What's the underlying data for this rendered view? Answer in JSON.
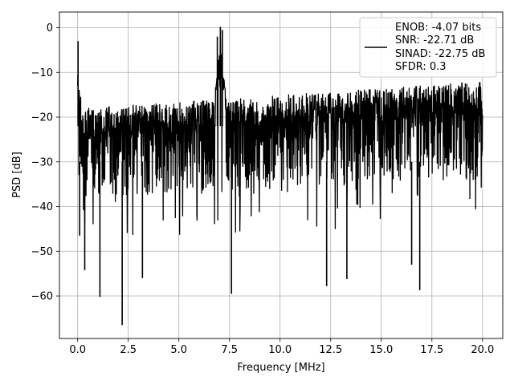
{
  "chart_data": {
    "type": "line",
    "xlabel": "Frequency [MHz]",
    "ylabel": "PSD [dB]",
    "xlim": [
      -0.9,
      21.0
    ],
    "ylim": [
      -69.5,
      3.5
    ],
    "xticks": [
      0.0,
      2.5,
      5.0,
      7.5,
      10.0,
      12.5,
      15.0,
      17.5,
      20.0
    ],
    "xtick_labels": [
      "0.0",
      "2.5",
      "5.0",
      "7.5",
      "10.0",
      "12.5",
      "15.0",
      "17.5",
      "20.0"
    ],
    "yticks": [
      0,
      -10,
      -20,
      -30,
      -40,
      -50,
      -60
    ],
    "ytick_labels": [
      "0",
      "−10",
      "−20",
      "−30",
      "−40",
      "−50",
      "−60"
    ],
    "grid": true,
    "legend_position": "top-right",
    "line_color": "#000000",
    "legend_lines": [
      "ENOB: -4.07 bits",
      "SNR: -22.71 dB",
      "SINAD: -22.75 dB",
      "SFDR: 0.3"
    ],
    "x_range": [
      0.0,
      20.0
    ],
    "noise_band": {
      "low_start": [
        0.05,
        -38
      ],
      "low_end": [
        20.0,
        -34
      ],
      "high_start": [
        0.05,
        -18
      ],
      "high_end": [
        20.0,
        -12
      ]
    },
    "peaks": [
      {
        "x": 0.02,
        "y": -3
      },
      {
        "x": 7.05,
        "y": 0.2
      },
      {
        "x": 6.9,
        "y": -2
      },
      {
        "x": 7.15,
        "y": -0.5
      }
    ],
    "dips": [
      {
        "x": 2.2,
        "y": -66.5
      },
      {
        "x": 1.1,
        "y": -60.2
      },
      {
        "x": 7.6,
        "y": -59.5
      },
      {
        "x": 16.9,
        "y": -58.7
      },
      {
        "x": 12.3,
        "y": -57.8
      },
      {
        "x": 0.35,
        "y": -54.2
      },
      {
        "x": 3.2,
        "y": -56
      },
      {
        "x": 13.3,
        "y": -56.2
      },
      {
        "x": 16.5,
        "y": -53
      },
      {
        "x": 0.1,
        "y": -46.5
      }
    ]
  }
}
